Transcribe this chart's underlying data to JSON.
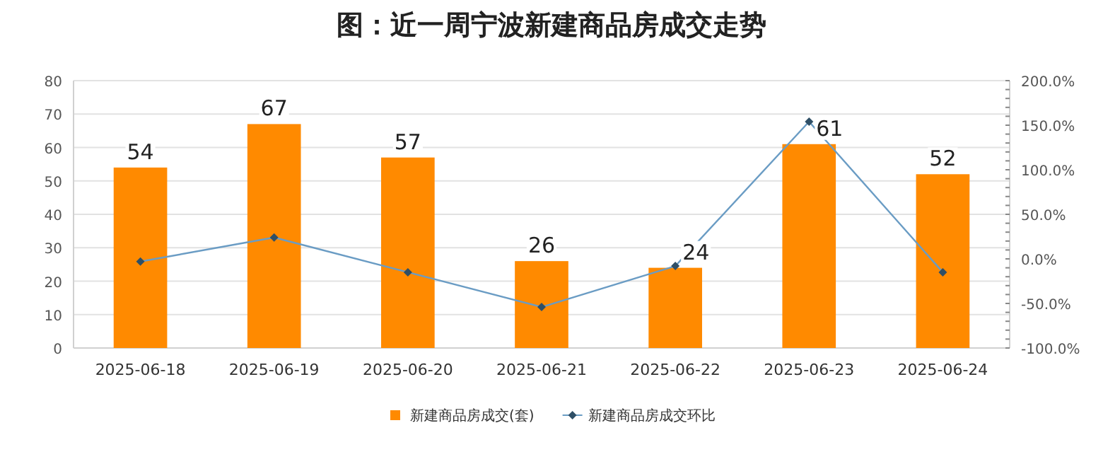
{
  "chart_data": {
    "type": "bar",
    "title": "图：近一周宁波新建商品房成交走势",
    "categories": [
      "2025-06-18",
      "2025-06-19",
      "2025-06-20",
      "2025-06-21",
      "2025-06-22",
      "2025-06-23",
      "2025-06-24"
    ],
    "series": [
      {
        "name": "新建商品房成交(套)",
        "color": "#ff8a00",
        "values": [
          54,
          67,
          57,
          26,
          24,
          61,
          52
        ],
        "value_labels": [
          "54",
          "67",
          "57",
          "26",
          "24",
          "61",
          "52"
        ]
      },
      {
        "name": "新建商品房成交环比",
        "type": "line",
        "axis": "y2",
        "color": "#6a9cc4",
        "marker": "diamond",
        "values": [
          -3,
          24,
          -15,
          -54,
          -8,
          154,
          -15
        ]
      }
    ],
    "ylim": [
      0,
      80
    ],
    "yticks": [
      0,
      10,
      20,
      30,
      40,
      50,
      60,
      70,
      80
    ],
    "y2lim": [
      -100,
      200
    ],
    "y2ticks": [
      {
        "value": -100,
        "label": "-100.0%"
      },
      {
        "value": -50,
        "label": "-50.0%"
      },
      {
        "value": 0,
        "label": "0.0%"
      },
      {
        "value": 50,
        "label": "50.0%"
      },
      {
        "value": 100,
        "label": "100.0%"
      },
      {
        "value": 150,
        "label": "150.0%"
      },
      {
        "value": 200,
        "label": "200.0%"
      }
    ],
    "grid": "y",
    "legend": "bottom"
  }
}
